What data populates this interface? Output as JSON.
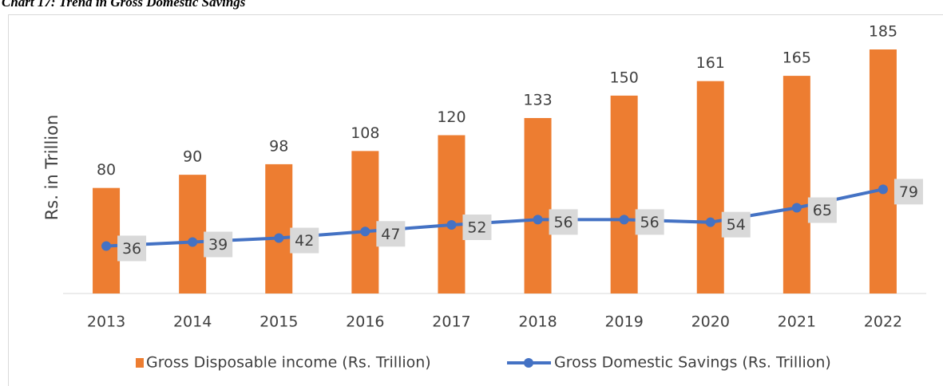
{
  "chart_data": {
    "type": "bar_line",
    "title": "Chart 17: Trend in Gross Domestic Savings",
    "y_label": "Rs. in Trillion",
    "categories": [
      "2013",
      "2014",
      "2015",
      "2016",
      "2017",
      "2018",
      "2019",
      "2020",
      "2021",
      "2022"
    ],
    "series": [
      {
        "name": "Gross Disposable income (Rs. Trillion)",
        "type": "bar",
        "color": "#ed7d31",
        "values": [
          80,
          90,
          98,
          108,
          120,
          133,
          150,
          161,
          165,
          185
        ]
      },
      {
        "name": "Gross Domestic Savings (Rs. Trillion)",
        "type": "line",
        "color": "#4472c4",
        "values": [
          36,
          39,
          42,
          47,
          52,
          56,
          56,
          54,
          65,
          79
        ]
      }
    ]
  }
}
